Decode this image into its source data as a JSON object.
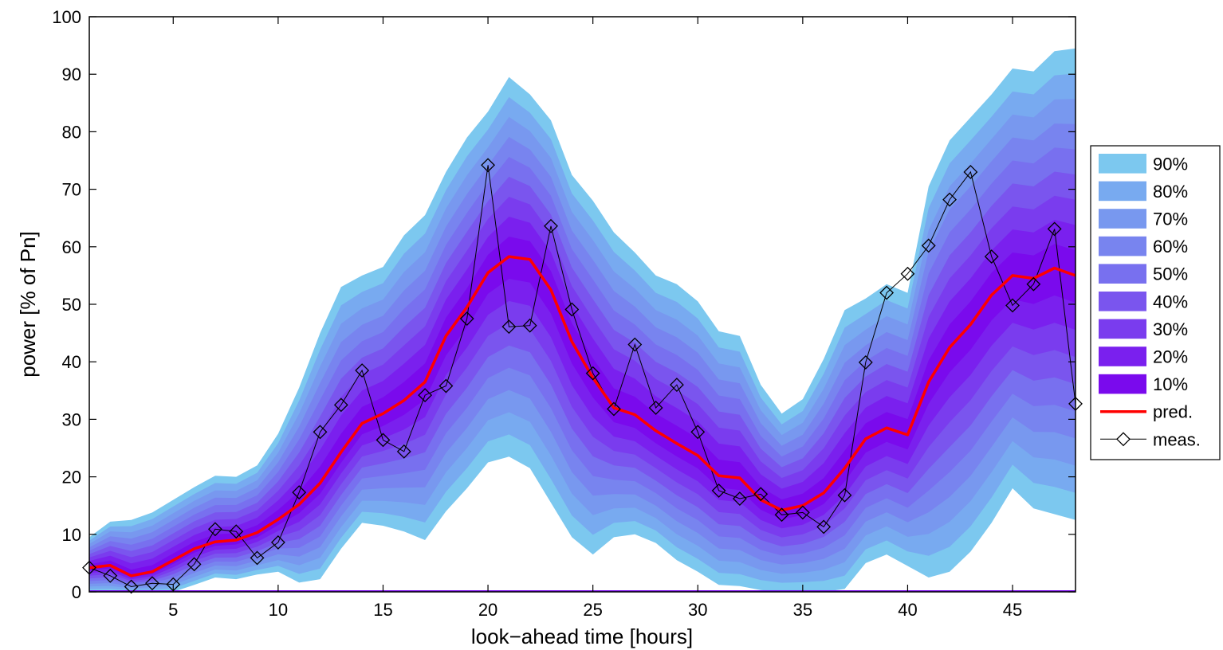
{
  "chart_data": {
    "type": "area",
    "xlabel": "look−ahead time [hours]",
    "ylabel": "power [% of Pn]",
    "xlim": [
      1,
      48
    ],
    "ylim": [
      0,
      100
    ],
    "xticks": [
      5,
      10,
      15,
      20,
      25,
      30,
      35,
      40,
      45
    ],
    "yticks": [
      0,
      10,
      20,
      30,
      40,
      50,
      60,
      70,
      80,
      90,
      100
    ],
    "grid": false,
    "legend_position": "right",
    "x": [
      1,
      2,
      3,
      4,
      5,
      6,
      7,
      8,
      9,
      10,
      11,
      12,
      13,
      14,
      15,
      16,
      17,
      18,
      19,
      20,
      21,
      22,
      23,
      24,
      25,
      26,
      27,
      28,
      29,
      30,
      31,
      32,
      33,
      34,
      35,
      36,
      37,
      38,
      39,
      40,
      41,
      42,
      43,
      44,
      45,
      46,
      47,
      48
    ],
    "series": [
      {
        "name": "pred.",
        "color": "#ff0000",
        "values": [
          4.2,
          4.6,
          2.8,
          3.5,
          5.5,
          7.5,
          8.7,
          9.0,
          10.3,
          12.6,
          15.2,
          18.9,
          24.3,
          29.3,
          31.0,
          33.3,
          36.5,
          44.5,
          49.5,
          55.5,
          58.3,
          57.8,
          52.5,
          43.5,
          37.2,
          32.0,
          30.8,
          28.0,
          25.8,
          23.7,
          20.2,
          19.8,
          16.0,
          14.2,
          15.0,
          17.2,
          21.5,
          26.6,
          28.5,
          27.3,
          36.5,
          42.5,
          46.5,
          51.6,
          55.0,
          54.5,
          56.3,
          55.0
        ]
      },
      {
        "name": "meas.",
        "color": "#000000",
        "marker": "diamond",
        "values": [
          4.2,
          2.8,
          0.9,
          1.5,
          1.3,
          4.8,
          10.9,
          10.5,
          5.9,
          8.6,
          17.3,
          27.8,
          32.5,
          38.5,
          26.4,
          24.4,
          34.2,
          35.8,
          47.5,
          74.2,
          46.1,
          46.3,
          63.6,
          49.1,
          38.0,
          31.8,
          43.0,
          32.0,
          36.0,
          27.8,
          17.6,
          16.2,
          17.0,
          13.4,
          13.8,
          11.3,
          16.8,
          39.9,
          52.0,
          55.3,
          60.2,
          68.2,
          73.0,
          58.3,
          49.8,
          53.5,
          63.1,
          32.7
        ]
      }
    ],
    "bands": [
      {
        "name": "90%",
        "color": "#7cc8ef",
        "upper": [
          9.5,
          12.2,
          12.5,
          13.8,
          16.0,
          18.2,
          20.2,
          20.0,
          22.0,
          27.5,
          35.5,
          45.0,
          53.0,
          55.0,
          56.5,
          62.0,
          65.5,
          73.0,
          79.0,
          83.5,
          89.5,
          86.5,
          82.0,
          72.5,
          68.0,
          62.5,
          59.0,
          55.0,
          53.5,
          50.5,
          45.3,
          44.5,
          36.0,
          31.0,
          33.5,
          40.5,
          49.0,
          51.0,
          53.5,
          52.0,
          70.5,
          78.5,
          82.5,
          86.5,
          91.0,
          90.5,
          94.0,
          94.5
        ],
        "lower": [
          0,
          0,
          0,
          0,
          0,
          1.2,
          2.5,
          2.2,
          3.0,
          3.5,
          1.6,
          2.2,
          7.5,
          12.0,
          11.5,
          10.5,
          9.0,
          14.0,
          18.0,
          22.5,
          23.5,
          21.5,
          15.5,
          9.5,
          6.5,
          9.5,
          10.0,
          8.5,
          5.5,
          3.5,
          1.2,
          1.0,
          0.3,
          0,
          0,
          0,
          0.5,
          5.0,
          6.5,
          4.5,
          2.5,
          3.5,
          7.0,
          12.0,
          18.0,
          14.5,
          13.5,
          12.5
        ]
      },
      {
        "name": "80%",
        "color": "#78aaf0",
        "upper": [],
        "lower": []
      },
      {
        "name": "70%",
        "color": "#7898ef",
        "upper": [],
        "lower": []
      },
      {
        "name": "60%",
        "color": "#7884ef",
        "upper": [],
        "lower": []
      },
      {
        "name": "50%",
        "color": "#7870ef",
        "upper": [],
        "lower": []
      },
      {
        "name": "40%",
        "color": "#7a55ee",
        "upper": [],
        "lower": []
      },
      {
        "name": "30%",
        "color": "#7a3cee",
        "upper": [],
        "lower": []
      },
      {
        "name": "20%",
        "color": "#7a20ee",
        "upper": [],
        "lower": []
      },
      {
        "name": "10%",
        "color": "#7a0aed",
        "upper": [],
        "lower": []
      }
    ],
    "legend": [
      {
        "label": "90%",
        "kind": "patch",
        "color": "#7cc8ef"
      },
      {
        "label": "80%",
        "kind": "patch",
        "color": "#78aaf0"
      },
      {
        "label": "70%",
        "kind": "patch",
        "color": "#7898ef"
      },
      {
        "label": "60%",
        "kind": "patch",
        "color": "#7884ef"
      },
      {
        "label": "50%",
        "kind": "patch",
        "color": "#7870ef"
      },
      {
        "label": "40%",
        "kind": "patch",
        "color": "#7a55ee"
      },
      {
        "label": "30%",
        "kind": "patch",
        "color": "#7a3cee"
      },
      {
        "label": "20%",
        "kind": "patch",
        "color": "#7a20ee"
      },
      {
        "label": "10%",
        "kind": "patch",
        "color": "#7a0aed"
      },
      {
        "label": "pred.",
        "kind": "line",
        "color": "#ff0000"
      },
      {
        "label": "meas.",
        "kind": "marker-line",
        "color": "#000000"
      }
    ]
  }
}
